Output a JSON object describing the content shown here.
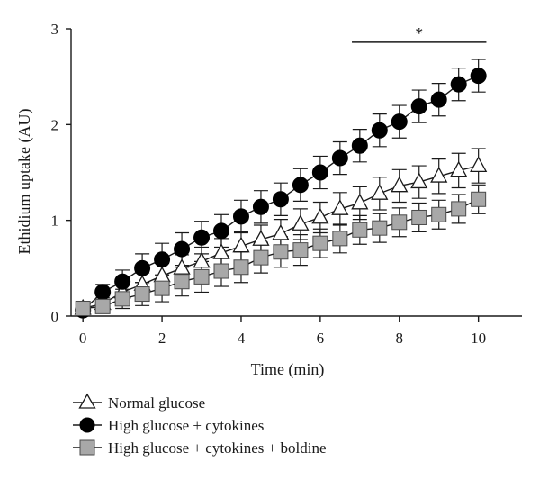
{
  "chart_data": {
    "type": "line",
    "title": "",
    "xlabel": "Time (min)",
    "ylabel": "Ethidium uptake (AU)",
    "xlim": [
      -0.3,
      11.1
    ],
    "ylim": [
      0,
      3
    ],
    "x_ticks": [
      0,
      2,
      4,
      6,
      8,
      10
    ],
    "y_ticks": [
      0,
      1,
      2,
      3
    ],
    "x_tick_labels": [
      "0",
      "2",
      "4",
      "6",
      "8",
      "10"
    ],
    "y_tick_labels": [
      "0",
      "1",
      "2",
      "3"
    ],
    "grid": false,
    "legend_position": "bottom-left",
    "x": [
      0,
      0.5,
      1,
      1.5,
      2,
      2.5,
      3,
      3.5,
      4,
      4.5,
      5,
      5.5,
      6,
      6.5,
      7,
      7.5,
      8,
      8.5,
      9,
      9.5,
      10
    ],
    "series": [
      {
        "name": "Normal glucose",
        "marker": "triangle-open",
        "values": [
          0.08,
          0.13,
          0.25,
          0.33,
          0.42,
          0.5,
          0.57,
          0.66,
          0.73,
          0.8,
          0.86,
          0.96,
          1.03,
          1.12,
          1.18,
          1.28,
          1.36,
          1.4,
          1.46,
          1.52,
          1.57
        ],
        "errors": [
          0.03,
          0.06,
          0.1,
          0.12,
          0.13,
          0.14,
          0.15,
          0.15,
          0.15,
          0.15,
          0.15,
          0.16,
          0.16,
          0.17,
          0.17,
          0.17,
          0.17,
          0.17,
          0.18,
          0.18,
          0.18
        ]
      },
      {
        "name": "High glucose + cytokines",
        "marker": "circle-filled",
        "values": [
          0.06,
          0.25,
          0.36,
          0.5,
          0.59,
          0.7,
          0.82,
          0.89,
          1.04,
          1.14,
          1.22,
          1.37,
          1.5,
          1.65,
          1.78,
          1.94,
          2.03,
          2.19,
          2.26,
          2.42,
          2.51
        ],
        "errors": [
          0.03,
          0.08,
          0.12,
          0.15,
          0.17,
          0.17,
          0.17,
          0.17,
          0.17,
          0.17,
          0.17,
          0.17,
          0.17,
          0.17,
          0.17,
          0.17,
          0.17,
          0.17,
          0.17,
          0.17,
          0.17
        ]
      },
      {
        "name": "High glucose + cytokines + boldine",
        "marker": "square-filled-gray",
        "values": [
          0.08,
          0.1,
          0.18,
          0.23,
          0.29,
          0.36,
          0.41,
          0.47,
          0.51,
          0.61,
          0.67,
          0.69,
          0.76,
          0.81,
          0.9,
          0.92,
          0.98,
          1.03,
          1.06,
          1.12,
          1.22
        ],
        "errors": [
          0.03,
          0.06,
          0.1,
          0.12,
          0.14,
          0.15,
          0.16,
          0.16,
          0.16,
          0.16,
          0.16,
          0.16,
          0.15,
          0.15,
          0.15,
          0.15,
          0.15,
          0.15,
          0.15,
          0.15,
          0.15
        ]
      }
    ],
    "annotations": [
      {
        "text": "*",
        "x_start": 6.8,
        "x_end": 10.2,
        "y": 2.86
      }
    ]
  },
  "colors": {
    "axis": "#1a1a1a",
    "triangle_fill": "#ffffff",
    "circle_fill": "#000000",
    "square_fill": "#a8a8a8"
  }
}
